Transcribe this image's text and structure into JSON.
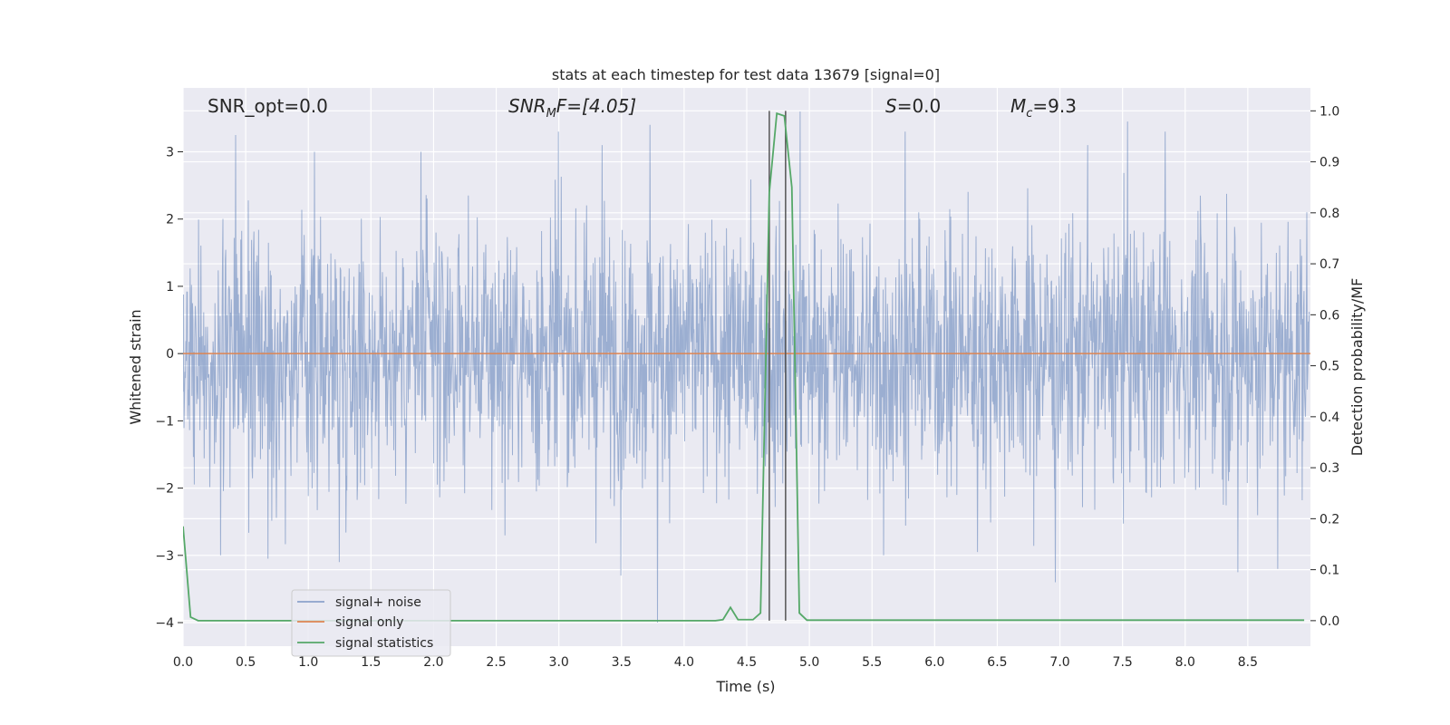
{
  "chart_data": {
    "type": "line",
    "title": "stats at each timestep for test data 13679 [signal=0]",
    "xlabel": "Time (s)",
    "ylabel": "Whitened strain",
    "y2label": "Detection probability/MF",
    "xlim": [
      0.0,
      9.0
    ],
    "ylim": [
      -4.35,
      3.95
    ],
    "y2lim": [
      -0.05,
      1.045
    ],
    "x_ticks": [
      "0.0",
      "0.5",
      "1.0",
      "1.5",
      "2.0",
      "2.5",
      "3.0",
      "3.5",
      "4.0",
      "4.5",
      "5.0",
      "5.5",
      "6.0",
      "6.5",
      "7.0",
      "7.5",
      "8.0",
      "8.5"
    ],
    "y_ticks": [
      "3",
      "2",
      "1",
      "0",
      "−1",
      "−2",
      "−3",
      "−4"
    ],
    "y2_ticks": [
      "1.0",
      "0.9",
      "0.8",
      "0.7",
      "0.6",
      "0.5",
      "0.4",
      "0.3",
      "0.2",
      "0.1",
      "0.0"
    ],
    "grid": true,
    "legend_position": "lower-left",
    "annotations": {
      "snr_opt": "SNR_opt=0.0",
      "snr_mf_main": "SNR",
      "snr_mf_sub": "M",
      "snr_mf_rest": "F=[4.05]",
      "s_main": "S",
      "s_rest": "=0.0",
      "mc_main": "M",
      "mc_sub": "c",
      "mc_rest": "=9.3"
    },
    "vertical_lines_x": [
      4.68,
      4.81
    ],
    "series": [
      {
        "name": "signal+ noise",
        "color": "#4c72b0",
        "axis": "left",
        "description_stats": {
          "std": 1.0
        },
        "spikes": [
          [
            0.42,
            3.25
          ],
          [
            3.0,
            3.3
          ],
          [
            3.35,
            3.1
          ],
          [
            3.73,
            3.4
          ],
          [
            4.93,
            3.6
          ],
          [
            5.77,
            3.3
          ],
          [
            7.55,
            3.45
          ],
          [
            7.85,
            3.3
          ],
          [
            7.23,
            3.1
          ],
          [
            1.9,
            3.0
          ],
          [
            1.05,
            3.0
          ],
          [
            3.79,
            -4.0
          ],
          [
            3.5,
            -3.3
          ],
          [
            6.97,
            -3.4
          ],
          [
            8.43,
            -3.25
          ],
          [
            8.75,
            -3.2
          ],
          [
            1.25,
            -3.1
          ],
          [
            0.3,
            -3.0
          ],
          [
            0.68,
            -3.05
          ],
          [
            5.6,
            -3.0
          ],
          [
            6.35,
            -2.95
          ]
        ]
      },
      {
        "name": "signal only",
        "color": "#dd8452",
        "axis": "left",
        "x": [
          0.0,
          9.0
        ],
        "y": [
          0.0,
          0.0
        ]
      },
      {
        "name": "signal statistics",
        "color": "#55a868",
        "axis": "right",
        "x": [
          0.0,
          0.06,
          0.12,
          4.25,
          4.31,
          4.37,
          4.43,
          4.55,
          4.61,
          4.68,
          4.74,
          4.8,
          4.86,
          4.92,
          4.98,
          8.95
        ],
        "y": [
          0.185,
          0.007,
          0.0,
          0.0,
          0.002,
          0.026,
          0.002,
          0.002,
          0.015,
          0.84,
          0.995,
          0.99,
          0.85,
          0.015,
          0.001,
          0.001
        ]
      }
    ]
  }
}
